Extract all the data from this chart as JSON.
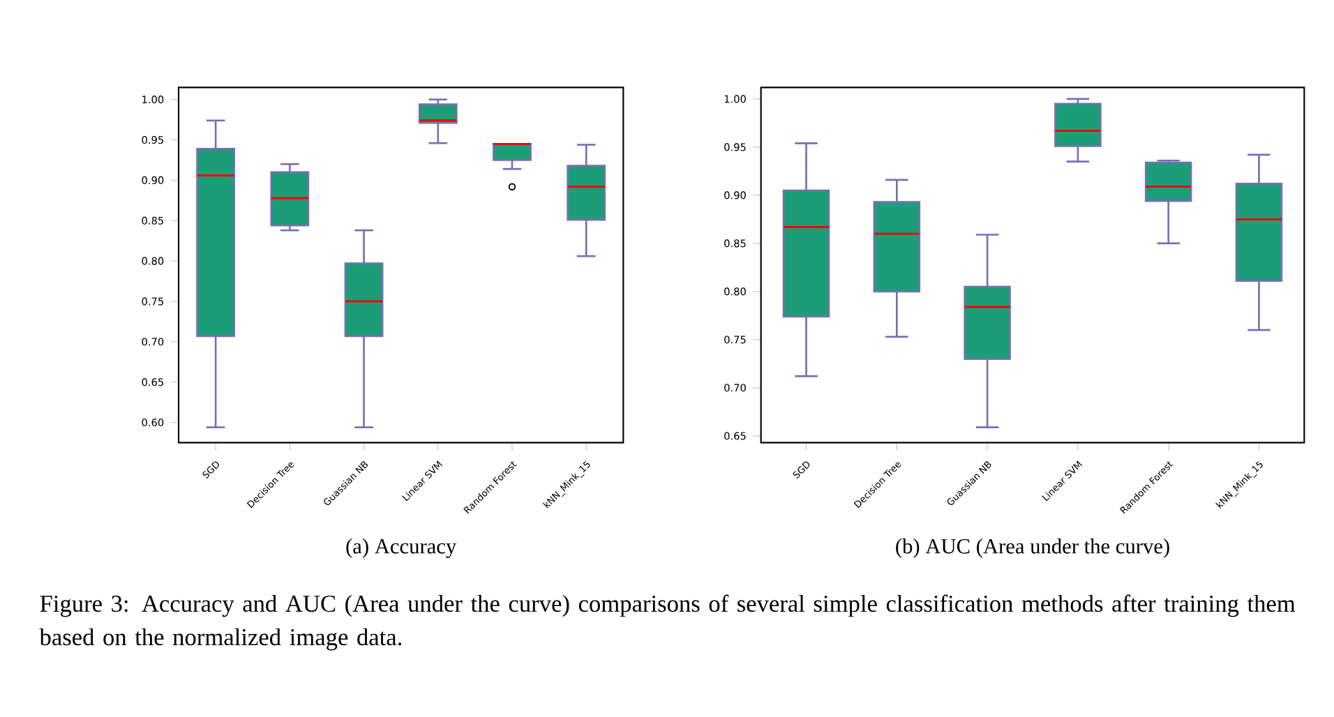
{
  "chart_data": [
    {
      "type": "box",
      "title": "(a)  Accuracy",
      "color": "#1b9e77",
      "categories": [
        "SGD",
        "Decision Tree",
        "Guassian NB",
        "Linear SVM",
        "Random Forest",
        "kNN_Mink_15"
      ],
      "boxes": [
        {
          "low": 0.594,
          "q1": 0.707,
          "median": 0.906,
          "q3": 0.939,
          "high": 0.974
        },
        {
          "low": 0.838,
          "q1": 0.844,
          "median": 0.878,
          "q3": 0.91,
          "high": 0.92
        },
        {
          "low": 0.594,
          "q1": 0.707,
          "median": 0.75,
          "q3": 0.797,
          "high": 0.838
        },
        {
          "low": 0.946,
          "q1": 0.971,
          "median": 0.974,
          "q3": 0.994,
          "high": 1.0
        },
        {
          "low": 0.914,
          "q1": 0.925,
          "median": 0.945,
          "q3": 0.945,
          "high": 0.945,
          "outliers": [
            0.892
          ]
        },
        {
          "low": 0.806,
          "q1": 0.851,
          "median": 0.892,
          "q3": 0.918,
          "high": 0.944
        }
      ],
      "ylim": [
        0.575,
        1.015
      ],
      "yticks": [
        {
          "value": 0.6,
          "label": "0.60"
        },
        {
          "value": 0.65,
          "label": "0.65"
        },
        {
          "value": 0.7,
          "label": "0.70"
        },
        {
          "value": 0.75,
          "label": "0.75"
        },
        {
          "value": 0.8,
          "label": "0.80"
        },
        {
          "value": 0.85,
          "label": "0.85"
        },
        {
          "value": 0.9,
          "label": "0.90"
        },
        {
          "value": 0.95,
          "label": "0.95"
        },
        {
          "value": 1.0,
          "label": "1.00"
        }
      ],
      "annotations": [
        "Figure 3: Accuracy and AUC (Area under the curve) comparisons of several simple classification methods after training them based on the normalized image data."
      ]
    },
    {
      "type": "box",
      "title": "(b) AUC (Area under the curve)",
      "color": "#1b9e77",
      "categories": [
        "SGD",
        "Decision Tree",
        "Guassian NB",
        "Linear SVM",
        "Random Forest",
        "kNN_Mink_15"
      ],
      "boxes": [
        {
          "low": 0.712,
          "q1": 0.774,
          "median": 0.867,
          "q3": 0.905,
          "high": 0.954
        },
        {
          "low": 0.753,
          "q1": 0.8,
          "median": 0.86,
          "q3": 0.893,
          "high": 0.916
        },
        {
          "low": 0.659,
          "q1": 0.73,
          "median": 0.784,
          "q3": 0.805,
          "high": 0.859
        },
        {
          "low": 0.935,
          "q1": 0.951,
          "median": 0.967,
          "q3": 0.995,
          "high": 1.0
        },
        {
          "low": 0.85,
          "q1": 0.894,
          "median": 0.909,
          "q3": 0.934,
          "high": 0.936
        },
        {
          "low": 0.76,
          "q1": 0.811,
          "median": 0.875,
          "q3": 0.912,
          "high": 0.942
        }
      ],
      "ylim": [
        0.643,
        1.012
      ],
      "yticks": [
        {
          "value": 0.65,
          "label": "0.65"
        },
        {
          "value": 0.7,
          "label": "0.70"
        },
        {
          "value": 0.75,
          "label": "0.75"
        },
        {
          "value": 0.8,
          "label": "0.80"
        },
        {
          "value": 0.85,
          "label": "0.85"
        },
        {
          "value": 0.9,
          "label": "0.90"
        },
        {
          "value": 0.95,
          "label": "0.95"
        },
        {
          "value": 1.0,
          "label": "1.00"
        }
      ]
    }
  ]
}
